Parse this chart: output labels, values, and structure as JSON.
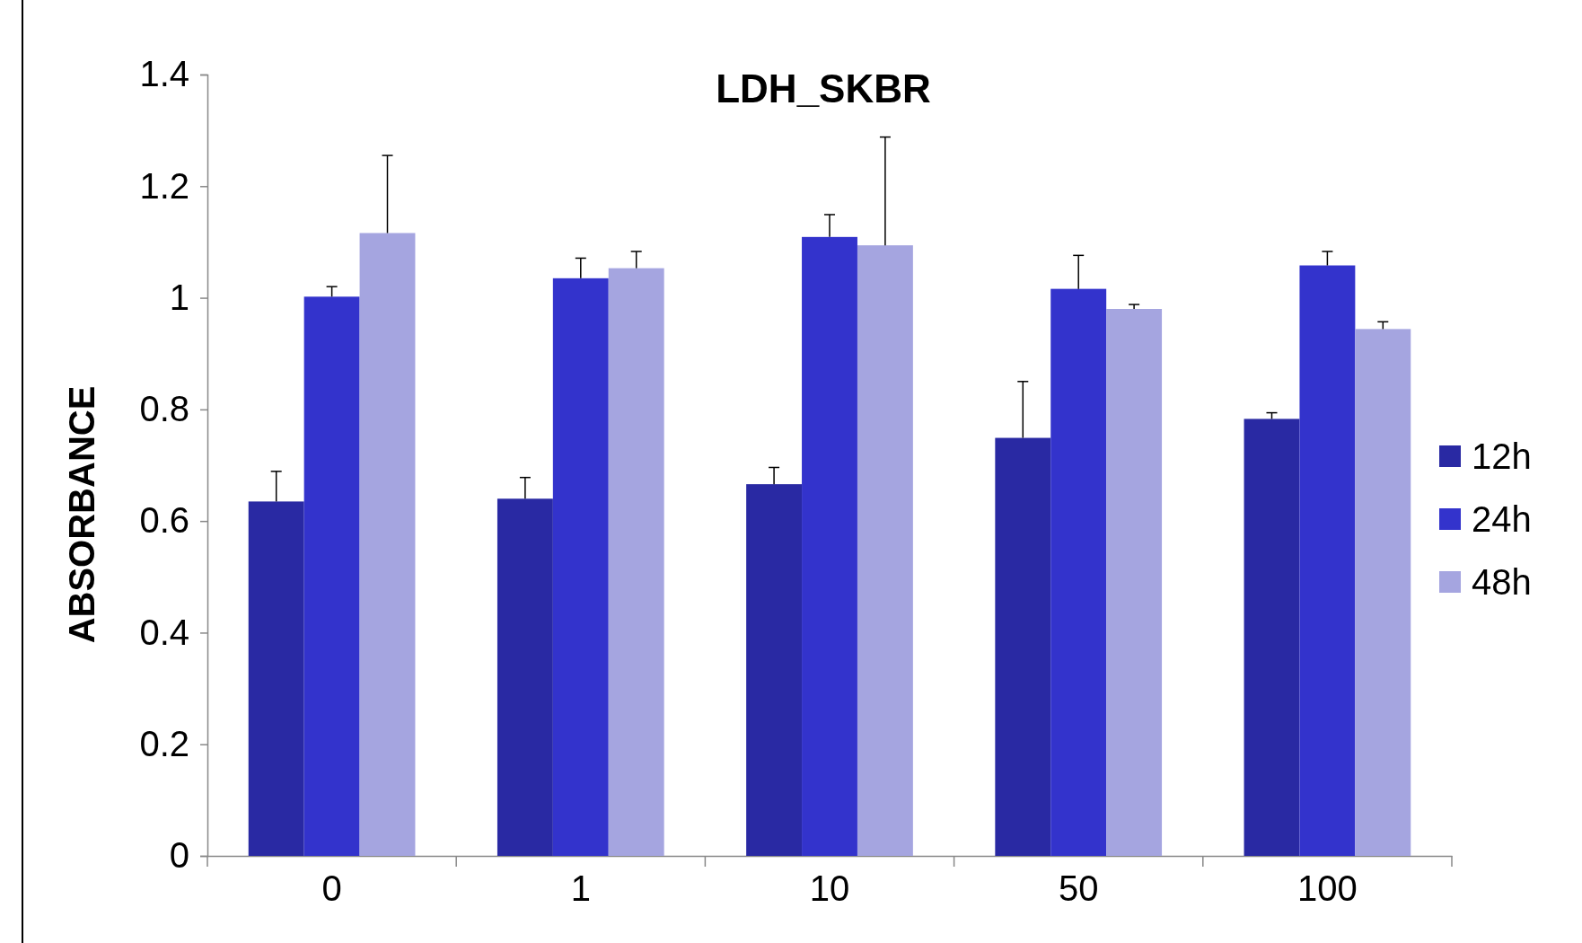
{
  "chart_data": {
    "type": "bar",
    "title": "LDH_SKBR",
    "ylabel": "ABSORBANCE",
    "categories": [
      "0",
      "1",
      "10",
      "50",
      "100"
    ],
    "series": [
      {
        "name": "12h",
        "color": "#2929a3",
        "values": [
          0.635,
          0.64,
          0.666,
          0.749,
          0.783
        ],
        "errors": [
          [
            0.635,
            0.689
          ],
          [
            0.64,
            0.678
          ],
          [
            0.666,
            0.696
          ],
          [
            0.749,
            0.85
          ],
          [
            0.783,
            0.794
          ]
        ]
      },
      {
        "name": "24h",
        "color": "#3333cc",
        "values": [
          1.002,
          1.035,
          1.109,
          1.016,
          1.058
        ],
        "errors": [
          [
            1.002,
            1.02
          ],
          [
            1.035,
            1.071
          ],
          [
            1.109,
            1.149
          ],
          [
            1.016,
            1.076
          ],
          [
            1.058,
            1.083
          ]
        ]
      },
      {
        "name": "48h",
        "color": "#a5a5e0",
        "values": [
          1.116,
          1.053,
          1.094,
          0.98,
          0.944
        ],
        "errors": [
          [
            1.116,
            1.255
          ],
          [
            1.053,
            1.083
          ],
          [
            1.094,
            1.288
          ],
          [
            0.98,
            0.988
          ],
          [
            0.944,
            0.957
          ]
        ]
      }
    ],
    "ylim": [
      0,
      1.4
    ],
    "yticks": [
      0,
      0.2,
      0.4,
      0.6,
      0.8,
      1,
      1.2,
      1.4
    ],
    "legend": "right",
    "grid": false
  }
}
